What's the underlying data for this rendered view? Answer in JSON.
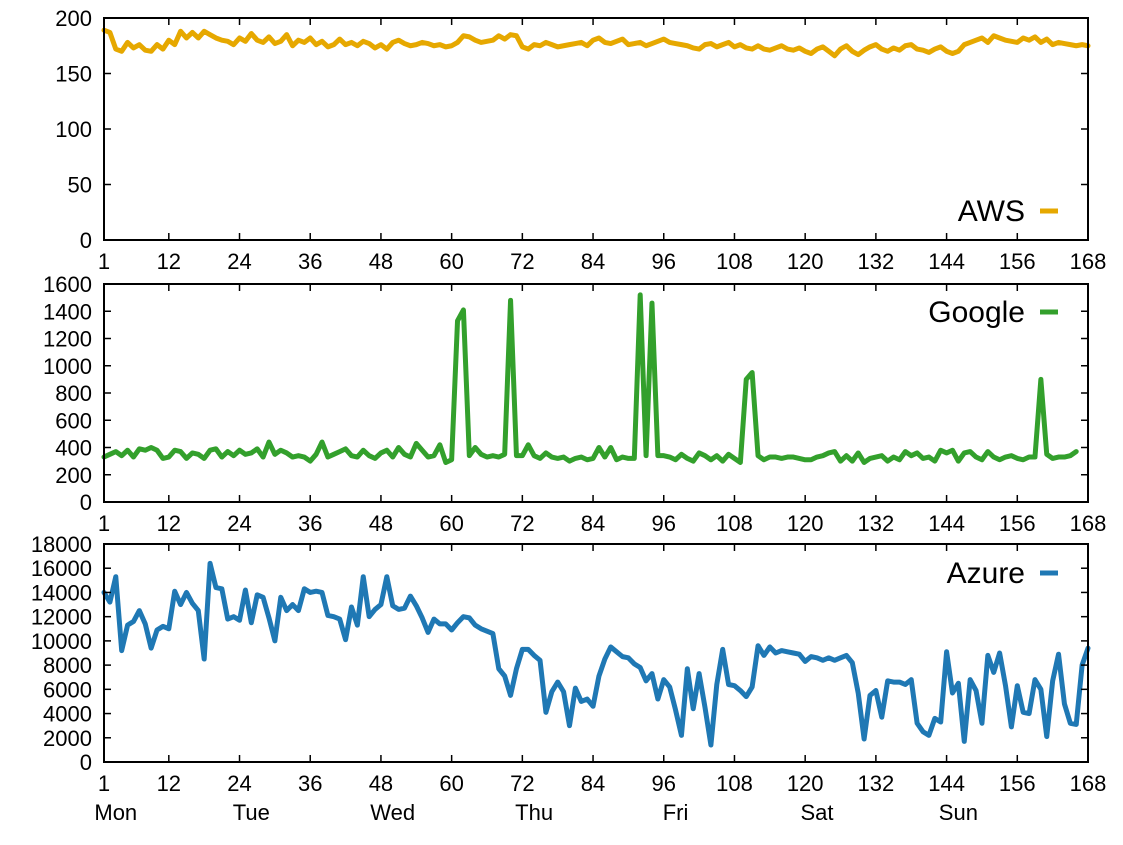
{
  "chart_data": [
    {
      "type": "line",
      "series": [
        {
          "name": "AWS",
          "color": "#e6a800",
          "values": [
            189,
            187,
            172,
            170,
            178,
            173,
            176,
            171,
            170,
            176,
            172,
            180,
            176,
            188,
            182,
            187,
            182,
            188,
            185,
            182,
            180,
            179,
            176,
            182,
            179,
            186,
            180,
            178,
            183,
            177,
            179,
            185,
            175,
            180,
            178,
            182,
            176,
            179,
            174,
            176,
            181,
            176,
            178,
            175,
            179,
            177,
            173,
            176,
            172,
            178,
            180,
            177,
            175,
            176,
            178,
            177,
            175,
            176,
            174,
            175,
            178,
            184,
            183,
            180,
            178,
            179,
            180,
            184,
            181,
            185,
            184,
            174,
            172,
            176,
            175,
            178,
            176,
            174,
            175,
            176,
            177,
            178,
            175,
            180,
            182,
            178,
            177,
            179,
            181,
            176,
            177,
            178,
            175,
            177,
            179,
            181,
            178,
            177,
            176,
            175,
            173,
            172,
            176,
            177,
            174,
            176,
            178,
            174,
            176,
            173,
            172,
            175,
            172,
            171,
            173,
            175,
            172,
            171,
            173,
            170,
            168,
            172,
            174,
            170,
            166,
            172,
            175,
            170,
            167,
            171,
            174,
            176,
            172,
            170,
            173,
            171,
            175,
            176,
            172,
            171,
            169,
            172,
            174,
            170,
            168,
            170,
            176,
            178,
            180,
            182,
            178,
            184,
            182,
            180,
            179,
            178,
            182,
            180,
            183,
            178,
            181,
            176,
            178,
            177,
            176,
            175,
            176,
            175
          ]
        }
      ],
      "x_start": 1,
      "xticks": [
        1,
        12,
        24,
        36,
        48,
        60,
        72,
        84,
        96,
        108,
        120,
        132,
        144,
        156,
        168
      ],
      "xlim": [
        1,
        168
      ],
      "ylim": [
        0,
        200
      ],
      "yticks": [
        0,
        50,
        100,
        150,
        200
      ],
      "grid": false,
      "legend": "bottom-right"
    },
    {
      "type": "line",
      "series": [
        {
          "name": "Google",
          "color": "#33a02c",
          "values": [
            330,
            350,
            370,
            340,
            380,
            330,
            390,
            380,
            400,
            380,
            320,
            330,
            380,
            370,
            320,
            360,
            350,
            320,
            380,
            390,
            330,
            370,
            340,
            380,
            350,
            360,
            390,
            330,
            440,
            350,
            380,
            360,
            330,
            340,
            330,
            300,
            350,
            440,
            330,
            350,
            370,
            390,
            340,
            330,
            380,
            340,
            320,
            360,
            380,
            330,
            400,
            350,
            330,
            430,
            380,
            330,
            340,
            420,
            290,
            310,
            1330,
            1410,
            340,
            400,
            350,
            330,
            340,
            330,
            350,
            1480,
            340,
            340,
            420,
            340,
            320,
            360,
            330,
            320,
            330,
            300,
            320,
            330,
            310,
            320,
            400,
            330,
            400,
            310,
            330,
            320,
            320,
            1520,
            340,
            1460,
            340,
            340,
            330,
            310,
            350,
            320,
            300,
            360,
            340,
            310,
            340,
            300,
            350,
            320,
            290,
            900,
            950,
            340,
            310,
            330,
            330,
            320,
            330,
            330,
            320,
            310,
            310,
            330,
            340,
            360,
            370,
            300,
            340,
            300,
            360,
            290,
            320,
            330,
            340,
            300,
            330,
            310,
            370,
            340,
            360,
            320,
            330,
            300,
            380,
            360,
            380,
            300,
            360,
            370,
            330,
            310,
            370,
            330,
            310,
            330,
            340,
            320,
            310,
            330,
            330,
            900,
            350,
            320,
            330,
            330,
            340,
            370
          ]
        }
      ],
      "x_start": 1,
      "xticks": [
        1,
        12,
        24,
        36,
        48,
        60,
        72,
        84,
        96,
        108,
        120,
        132,
        144,
        156,
        168
      ],
      "xlim": [
        1,
        168
      ],
      "ylim": [
        0,
        1600
      ],
      "yticks": [
        0,
        200,
        400,
        600,
        800,
        1000,
        1200,
        1400,
        1600
      ],
      "grid": false,
      "legend": "top-right"
    },
    {
      "type": "line",
      "series": [
        {
          "name": "Azure",
          "color": "#1f78b4",
          "values": [
            14000,
            13200,
            15300,
            9200,
            11300,
            11600,
            12500,
            11400,
            9400,
            10900,
            11200,
            11000,
            14100,
            13000,
            14000,
            13100,
            12500,
            8500,
            16400,
            14400,
            14300,
            11800,
            12000,
            11700,
            14200,
            11500,
            13800,
            13600,
            11900,
            10000,
            13600,
            12500,
            13000,
            12500,
            14300,
            14000,
            14100,
            14000,
            12100,
            12000,
            11800,
            10100,
            12800,
            11300,
            15300,
            12000,
            12600,
            13000,
            15300,
            12900,
            12600,
            12700,
            13700,
            12900,
            11900,
            10700,
            11800,
            11400,
            11400,
            10900,
            11500,
            12000,
            11900,
            11300,
            11000,
            10800,
            10600,
            7700,
            7100,
            5500,
            7700,
            9300,
            9300,
            8800,
            8400,
            4100,
            5800,
            6600,
            5800,
            3000,
            6100,
            5000,
            5200,
            4600,
            7100,
            8500,
            9500,
            9100,
            8700,
            8600,
            8100,
            7800,
            6700,
            7300,
            5200,
            6800,
            6200,
            4300,
            2200,
            7700,
            4400,
            7300,
            4500,
            1400,
            6400,
            9300,
            6400,
            6300,
            5900,
            5400,
            6200,
            9600,
            8800,
            9500,
            9000,
            9200,
            9100,
            9000,
            8900,
            8300,
            8700,
            8600,
            8400,
            8600,
            8400,
            8600,
            8800,
            8200,
            5700,
            1900,
            5500,
            5900,
            3700,
            6700,
            6600,
            6600,
            6400,
            6800,
            3200,
            2500,
            2200,
            3600,
            3300,
            9100,
            5700,
            6500,
            1700,
            6800,
            5900,
            3200,
            8800,
            7400,
            9000,
            6300,
            2900,
            6300,
            4100,
            4000,
            6800,
            6000,
            2100,
            6700,
            8900,
            4800,
            3200,
            3100,
            8000,
            9400
          ]
        }
      ],
      "x_start": 1,
      "xticks": [
        1,
        12,
        24,
        36,
        48,
        60,
        72,
        84,
        96,
        108,
        120,
        132,
        144,
        156,
        168
      ],
      "xlim": [
        1,
        168
      ],
      "ylim": [
        0,
        18000
      ],
      "yticks": [
        0,
        2000,
        4000,
        6000,
        8000,
        10000,
        12000,
        14000,
        16000,
        18000
      ],
      "grid": false,
      "legend": "top-right",
      "day_labels": [
        {
          "label": "Mon",
          "x": 3
        },
        {
          "label": "Tue",
          "x": 26
        },
        {
          "label": "Wed",
          "x": 50
        },
        {
          "label": "Thu",
          "x": 74
        },
        {
          "label": "Fri",
          "x": 98
        },
        {
          "label": "Sat",
          "x": 122
        },
        {
          "label": "Sun",
          "x": 146
        }
      ]
    }
  ]
}
